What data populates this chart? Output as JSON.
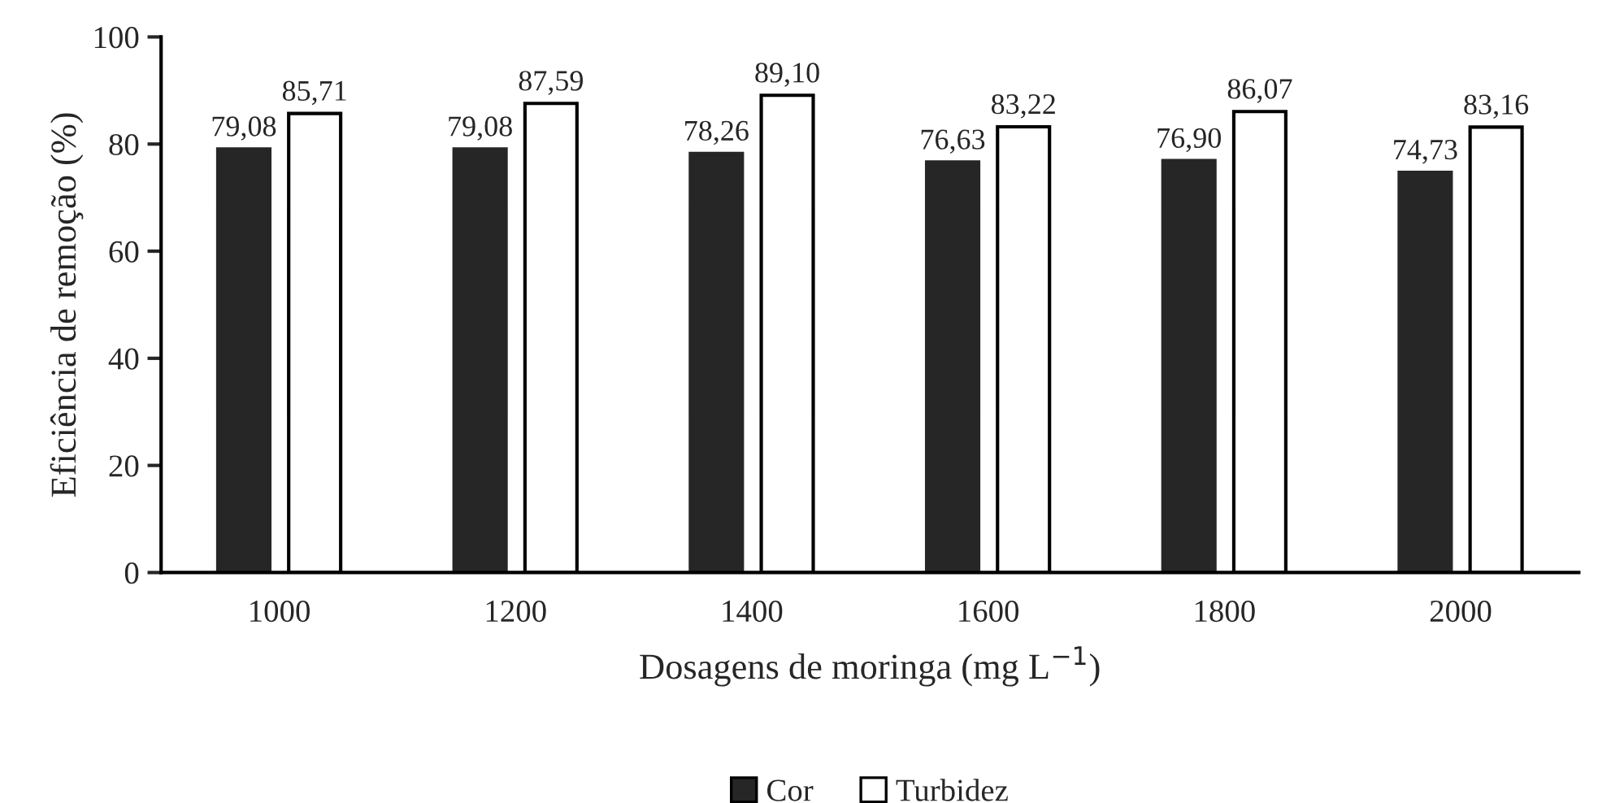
{
  "chart_data": {
    "type": "bar",
    "xlabel": "Dosagens de moringa (mg L$^{−1}$)",
    "ylabel": "Eficiência de remoção (%)",
    "categories": [
      "1000",
      "1200",
      "1400",
      "1600",
      "1800",
      "2000"
    ],
    "series": [
      {
        "name": "Cor",
        "color": "#262626",
        "values": [
          79.08,
          79.08,
          78.26,
          76.63,
          76.9,
          74.73
        ],
        "value_labels": [
          "79,08",
          "79,08",
          "78,26",
          "76,63",
          "76,90",
          "74,73"
        ]
      },
      {
        "name": "Turbidez",
        "color": "#ffffff",
        "values": [
          85.71,
          87.59,
          89.1,
          83.22,
          86.07,
          83.16
        ],
        "value_labels": [
          "85,71",
          "87,59",
          "89,10",
          "83,22",
          "86,07",
          "83,16"
        ]
      }
    ],
    "ylim": [
      0,
      100
    ],
    "yticks": [
      0,
      20,
      40,
      60,
      80,
      100
    ],
    "grid": false,
    "legend": "bottom"
  }
}
